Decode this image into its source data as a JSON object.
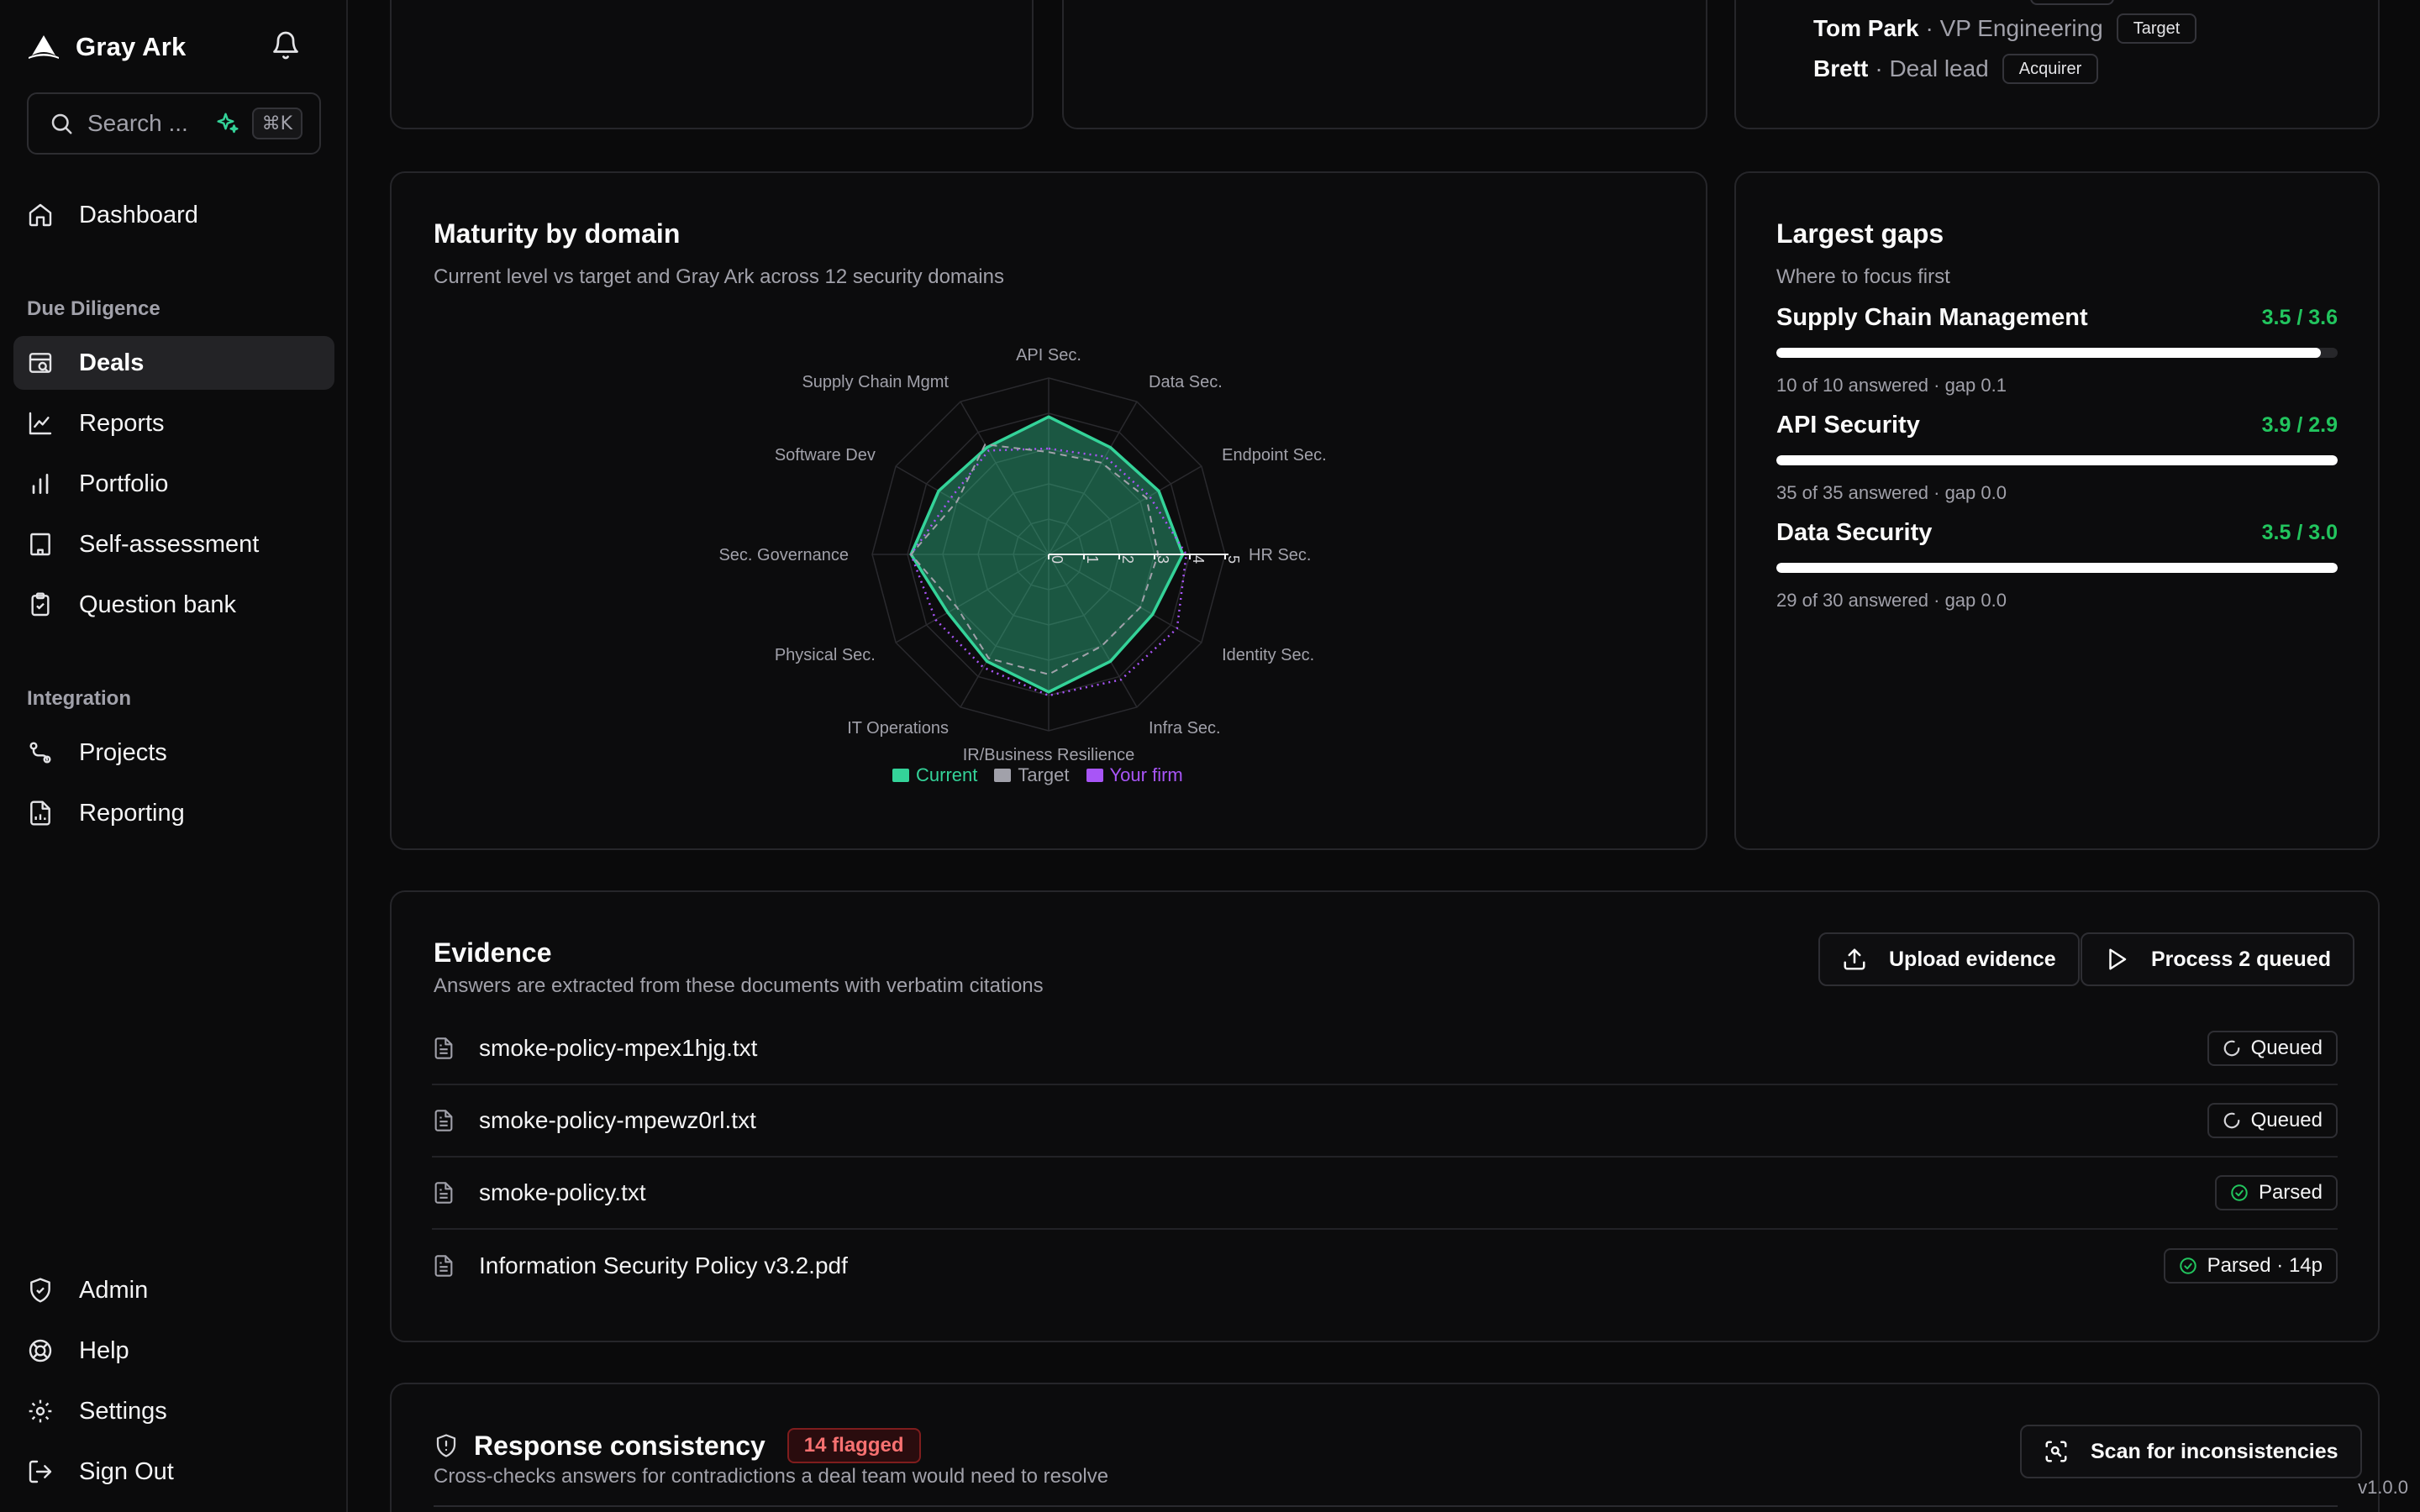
{
  "app": {
    "name": "Gray Ark",
    "version": "v1.0.0"
  },
  "search": {
    "placeholder": "Search ...",
    "shortcut": "⌘K"
  },
  "nav": {
    "dashboard": "Dashboard",
    "due_diligence_section": "Due Diligence",
    "deals": "Deals",
    "reports": "Reports",
    "portfolio": "Portfolio",
    "self_assessment": "Self-assessment",
    "question_bank": "Question bank",
    "integration_section": "Integration",
    "projects": "Projects",
    "reporting": "Reporting",
    "admin": "Admin",
    "help": "Help",
    "settings": "Settings",
    "sign_out": "Sign Out"
  },
  "contacts": [
    {
      "name": "Tom Park",
      "role": "· VP Engineering",
      "tag": "Target"
    },
    {
      "name": "Brett",
      "role": "· Deal lead",
      "tag": "Acquirer"
    }
  ],
  "maturity": {
    "title": "Maturity by domain",
    "subtitle": "Current level vs target and Gray Ark across 12 security domains"
  },
  "chart_data": {
    "type": "radar",
    "categories": [
      "API Sec.",
      "Data Sec.",
      "Endpoint Sec.",
      "HR Sec.",
      "Identity Sec.",
      "Infra Sec.",
      "IR/Business Resilience",
      "IT Operations",
      "Physical Sec.",
      "Sec. Governance",
      "Software Dev",
      "Supply Chain Mgmt"
    ],
    "rlim": [
      0,
      5
    ],
    "ticks": [
      "0",
      "1",
      "2",
      "3",
      "4",
      "5"
    ],
    "series": [
      {
        "name": "Current",
        "color": "#34d399",
        "values": [
          3.9,
          3.5,
          3.6,
          3.8,
          3.4,
          3.5,
          3.9,
          3.5,
          3.3,
          3.9,
          3.6,
          3.5
        ]
      },
      {
        "name": "Target",
        "color": "#a1a1aa",
        "values": [
          2.9,
          3.0,
          3.2,
          3.1,
          3.0,
          3.0,
          3.4,
          3.4,
          3.0,
          3.9,
          3.0,
          3.6
        ]
      },
      {
        "name": "Your firm",
        "color": "#a855f7",
        "values": [
          3.0,
          3.2,
          3.3,
          3.9,
          4.2,
          4.1,
          4.0,
          3.7,
          3.7,
          3.9,
          3.2,
          3.4
        ]
      }
    ],
    "legend_position": "bottom"
  },
  "gaps": {
    "title": "Largest gaps",
    "subtitle": "Where to focus first",
    "items": [
      {
        "name": "Supply Chain Management",
        "score": "3.5 / 3.6",
        "meta": "10 of 10 answered · gap 0.1",
        "progress": 0.97
      },
      {
        "name": "API Security",
        "score": "3.9 / 2.9",
        "meta": "35 of 35 answered · gap 0.0",
        "progress": 1.0
      },
      {
        "name": "Data Security",
        "score": "3.5 / 3.0",
        "meta": "29 of 30 answered · gap 0.0",
        "progress": 1.0
      }
    ]
  },
  "evidence": {
    "title": "Evidence",
    "subtitle": "Answers are extracted from these documents with verbatim citations",
    "upload_label": "Upload evidence",
    "process_label": "Process 2 queued",
    "files": [
      {
        "name": "smoke-policy-mpex1hjg.txt",
        "status": "Queued",
        "state": "queued"
      },
      {
        "name": "smoke-policy-mpewz0rl.txt",
        "status": "Queued",
        "state": "queued"
      },
      {
        "name": "smoke-policy.txt",
        "status": "Parsed",
        "state": "parsed"
      },
      {
        "name": "Information Security Policy v3.2.pdf",
        "status": "Parsed · 14p",
        "state": "parsed"
      }
    ]
  },
  "consistency": {
    "title": "Response consistency",
    "badge": "14 flagged",
    "subtitle": "Cross-checks answers for contradictions a deal team would need to resolve",
    "scan_label": "Scan for inconsistencies"
  },
  "colors": {
    "accent": "#34d399",
    "success": "#22c55e",
    "danger": "#f87171",
    "purple": "#a855f7"
  }
}
